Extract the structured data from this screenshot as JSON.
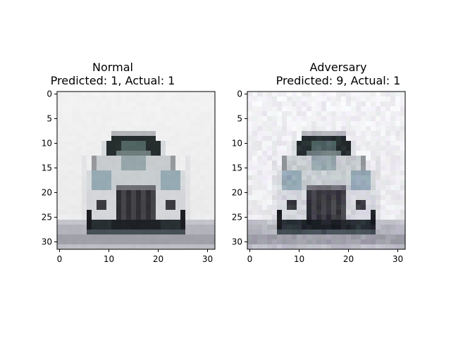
{
  "figure": {
    "panels": [
      {
        "title_line1": "Normal",
        "title_line2": "Predicted: 1, Actual: 1",
        "variant": "clean"
      },
      {
        "title_line1": "Adversary",
        "title_line2": "Predicted: 9, Actual: 1",
        "variant": "noisy"
      }
    ],
    "y_ticks": [
      "0",
      "5",
      "10",
      "15",
      "20",
      "25",
      "30"
    ],
    "x_ticks": [
      "0",
      "10",
      "20",
      "30"
    ],
    "image_size": [
      32,
      32
    ]
  }
}
